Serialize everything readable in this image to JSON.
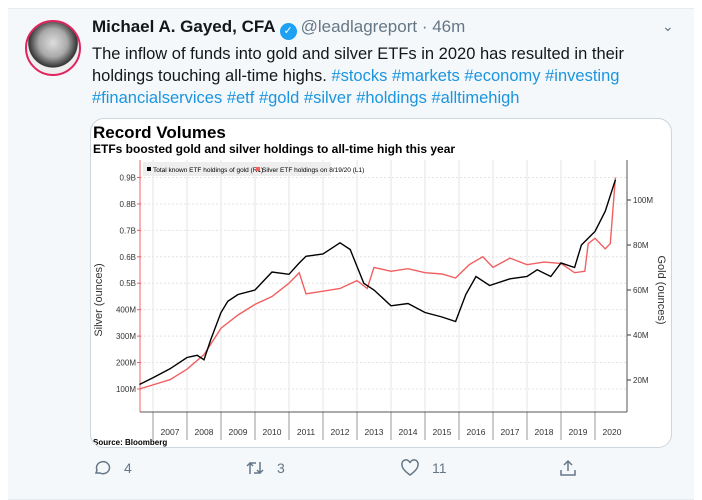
{
  "tweet": {
    "name": "Michael A. Gayed, CFA",
    "handle": "@leadlagreport",
    "time": "· 46m",
    "text": "The inflow of funds into gold and silver ETFs in 2020 has resulted in their holdings touching all-time highs.",
    "hashtags": [
      "#stocks",
      "#markets",
      "#economy",
      "#investing",
      "#financialservices",
      "#etf",
      "#gold",
      "#silver",
      "#holdings",
      "#alltimehigh"
    ],
    "replies": "4",
    "retweets": "3",
    "likes": "11"
  },
  "colors": {
    "accent": "#1da1f2",
    "hashtag": "#1b95e0",
    "gold_series": "#000000",
    "silver_series": "#f06060"
  },
  "chart_data": {
    "type": "line",
    "title": "Record Volumes",
    "subtitle": "ETFs boosted gold and silver holdings to all-time high this year",
    "source": "Source: Bloomberg",
    "ylabel_left": "Silver (ounces)",
    "ylabel_right": "Gold (ounces)",
    "left_ticks": [
      "100M",
      "200M",
      "300M",
      "400M",
      "0.5B",
      "0.6B",
      "0.7B",
      "0.8B",
      "0.9B"
    ],
    "right_ticks": [
      "20M",
      "40M",
      "60M",
      "80M",
      "100M"
    ],
    "x_ticks": [
      "2007",
      "2008",
      "2009",
      "2010",
      "2011",
      "2012",
      "2013",
      "2014",
      "2015",
      "2016",
      "2017",
      "2018",
      "2019",
      "2020"
    ],
    "grid": true,
    "legend_position": "top-left",
    "series": [
      {
        "name": "Total known ETF holdings of gold (R1)",
        "axis": "right",
        "unit": "million ounces",
        "x": [
          2006.6,
          2007.0,
          2007.5,
          2008.0,
          2008.3,
          2008.5,
          2008.7,
          2009.0,
          2009.2,
          2009.5,
          2010.0,
          2010.5,
          2011.0,
          2011.3,
          2011.5,
          2012.0,
          2012.5,
          2012.8,
          2013.2,
          2013.5,
          2014.0,
          2014.5,
          2015.0,
          2015.5,
          2015.9,
          2016.2,
          2016.5,
          2016.9,
          2017.5,
          2018.0,
          2018.3,
          2018.7,
          2019.0,
          2019.4,
          2019.6,
          2020.0,
          2020.3,
          2020.6
        ],
        "y": [
          18,
          21,
          25,
          30,
          31,
          29,
          38,
          50,
          55,
          58,
          60,
          68,
          67,
          72,
          75,
          76,
          81,
          78,
          63,
          60,
          53,
          54,
          50,
          48,
          46,
          58,
          66,
          62,
          65,
          66,
          69,
          66,
          72,
          70,
          80,
          86,
          95,
          109
        ]
      },
      {
        "name": "Silver ETF holdings on 8/19/20 (L1)",
        "axis": "left",
        "unit": "million ounces",
        "x": [
          2006.6,
          2007.5,
          2008.0,
          2008.5,
          2009.0,
          2009.5,
          2010.0,
          2010.5,
          2011.0,
          2011.3,
          2011.5,
          2012.0,
          2012.5,
          2013.0,
          2013.3,
          2013.5,
          2014.0,
          2014.5,
          2015.0,
          2015.5,
          2015.9,
          2016.3,
          2016.7,
          2017.0,
          2017.5,
          2018.0,
          2018.5,
          2019.0,
          2019.4,
          2019.7,
          2019.8,
          2020.0,
          2020.3,
          2020.45,
          2020.6
        ],
        "y": [
          100,
          135,
          175,
          230,
          330,
          380,
          420,
          450,
          500,
          540,
          460,
          470,
          480,
          510,
          480,
          560,
          545,
          555,
          540,
          535,
          520,
          570,
          600,
          560,
          595,
          570,
          580,
          575,
          540,
          545,
          650,
          670,
          630,
          650,
          900
        ]
      }
    ]
  }
}
